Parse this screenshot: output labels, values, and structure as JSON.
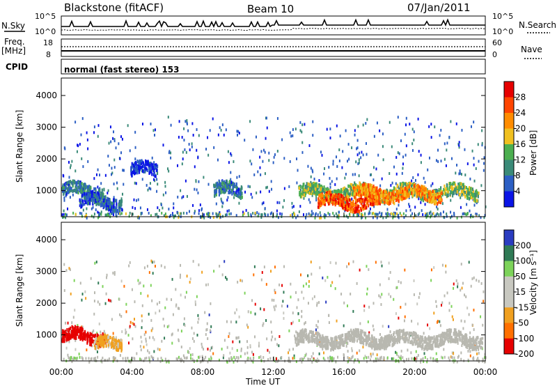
{
  "header": {
    "station": "Blackstone (fitACF)",
    "beam": "Beam 10",
    "date": "07/Jan/2011"
  },
  "summary": {
    "nsky_label": "N.Sky",
    "nsearch_label": "N.Search",
    "nsky_ticks": [
      "10^5",
      "10^0"
    ],
    "nsearch_ticks": [
      "10^5",
      "10^0"
    ],
    "freq_label": "Freq.",
    "freq_unit": "[MHz]",
    "freq_ticks": [
      "18",
      "8"
    ],
    "nave_label": "Nave",
    "nave_ticks": [
      "60",
      "0"
    ],
    "cpid_label": "CPID",
    "cpid_value": "normal (fast stereo) 153"
  },
  "colors": {
    "power_scale": [
      "#0a14e6",
      "#2c5fc4",
      "#3a8a78",
      "#4caf50",
      "#f0c020",
      "#ff8c00",
      "#ff4500",
      "#e60000"
    ],
    "velocity_scale": [
      "#2a3cc0",
      "#2f7a55",
      "#7dd35a",
      "#c8c8c0",
      "#c8c8c0",
      "#f0a020",
      "#ff7000",
      "#e60000"
    ],
    "ground_scatter": "#b8b8b0"
  },
  "chart_data": [
    {
      "type": "heatmap",
      "name": "power",
      "ylabel": "Slant Range [km]",
      "yticks": [
        1000,
        2000,
        3000,
        4000
      ],
      "ylim": [
        180,
        4550
      ],
      "xlim": [
        0,
        24
      ],
      "colorbar": {
        "label": "Power [dB]",
        "ticks": [
          "28",
          "24",
          "20",
          "16",
          "12",
          "8",
          "4"
        ],
        "range": [
          0,
          32
        ]
      },
      "features": [
        {
          "x_start": 0.0,
          "x_end": 2.4,
          "range_km": 1050,
          "value_db": 8
        },
        {
          "x_start": 1.0,
          "x_end": 3.4,
          "range_km": 700,
          "value_db": 6
        },
        {
          "x_start": 3.9,
          "x_end": 5.4,
          "range_km": 1700,
          "value_db": 4
        },
        {
          "x_start": 8.6,
          "x_end": 10.2,
          "range_km": 1050,
          "value_db": 8
        },
        {
          "x_start": 13.4,
          "x_end": 23.6,
          "range_km": 1000,
          "value_db": 14
        },
        {
          "x_start": 14.5,
          "x_end": 18.0,
          "range_km": 700,
          "value_db": 26
        },
        {
          "x_start": 16.5,
          "x_end": 21.5,
          "range_km": 950,
          "value_db": 22
        }
      ]
    },
    {
      "type": "heatmap",
      "name": "velocity",
      "xlabel": "Time UT",
      "ylabel": "Slant Range [km]",
      "xticks": [
        "00:00",
        "04:00",
        "08:00",
        "12:00",
        "16:00",
        "20:00",
        "00:00"
      ],
      "yticks": [
        1000,
        2000,
        3000,
        4000
      ],
      "ylim": [
        180,
        4550
      ],
      "xlim": [
        0,
        24
      ],
      "colorbar": {
        "label": "Velocity [m s⁻¹]",
        "ticks": [
          "200",
          "100",
          "50",
          "15",
          "-15",
          "-50",
          "-100",
          "-200"
        ],
        "range": [
          -250,
          250
        ]
      },
      "features": [
        {
          "x_start": 0.0,
          "x_end": 2.5,
          "range_km": 1000,
          "value_ms": -220
        },
        {
          "x_start": 1.8,
          "x_end": 3.4,
          "range_km": 750,
          "value_ms": -80
        },
        {
          "x_start": 13.2,
          "x_end": 23.8,
          "range_km": 900,
          "value_ms": 0
        }
      ]
    }
  ]
}
